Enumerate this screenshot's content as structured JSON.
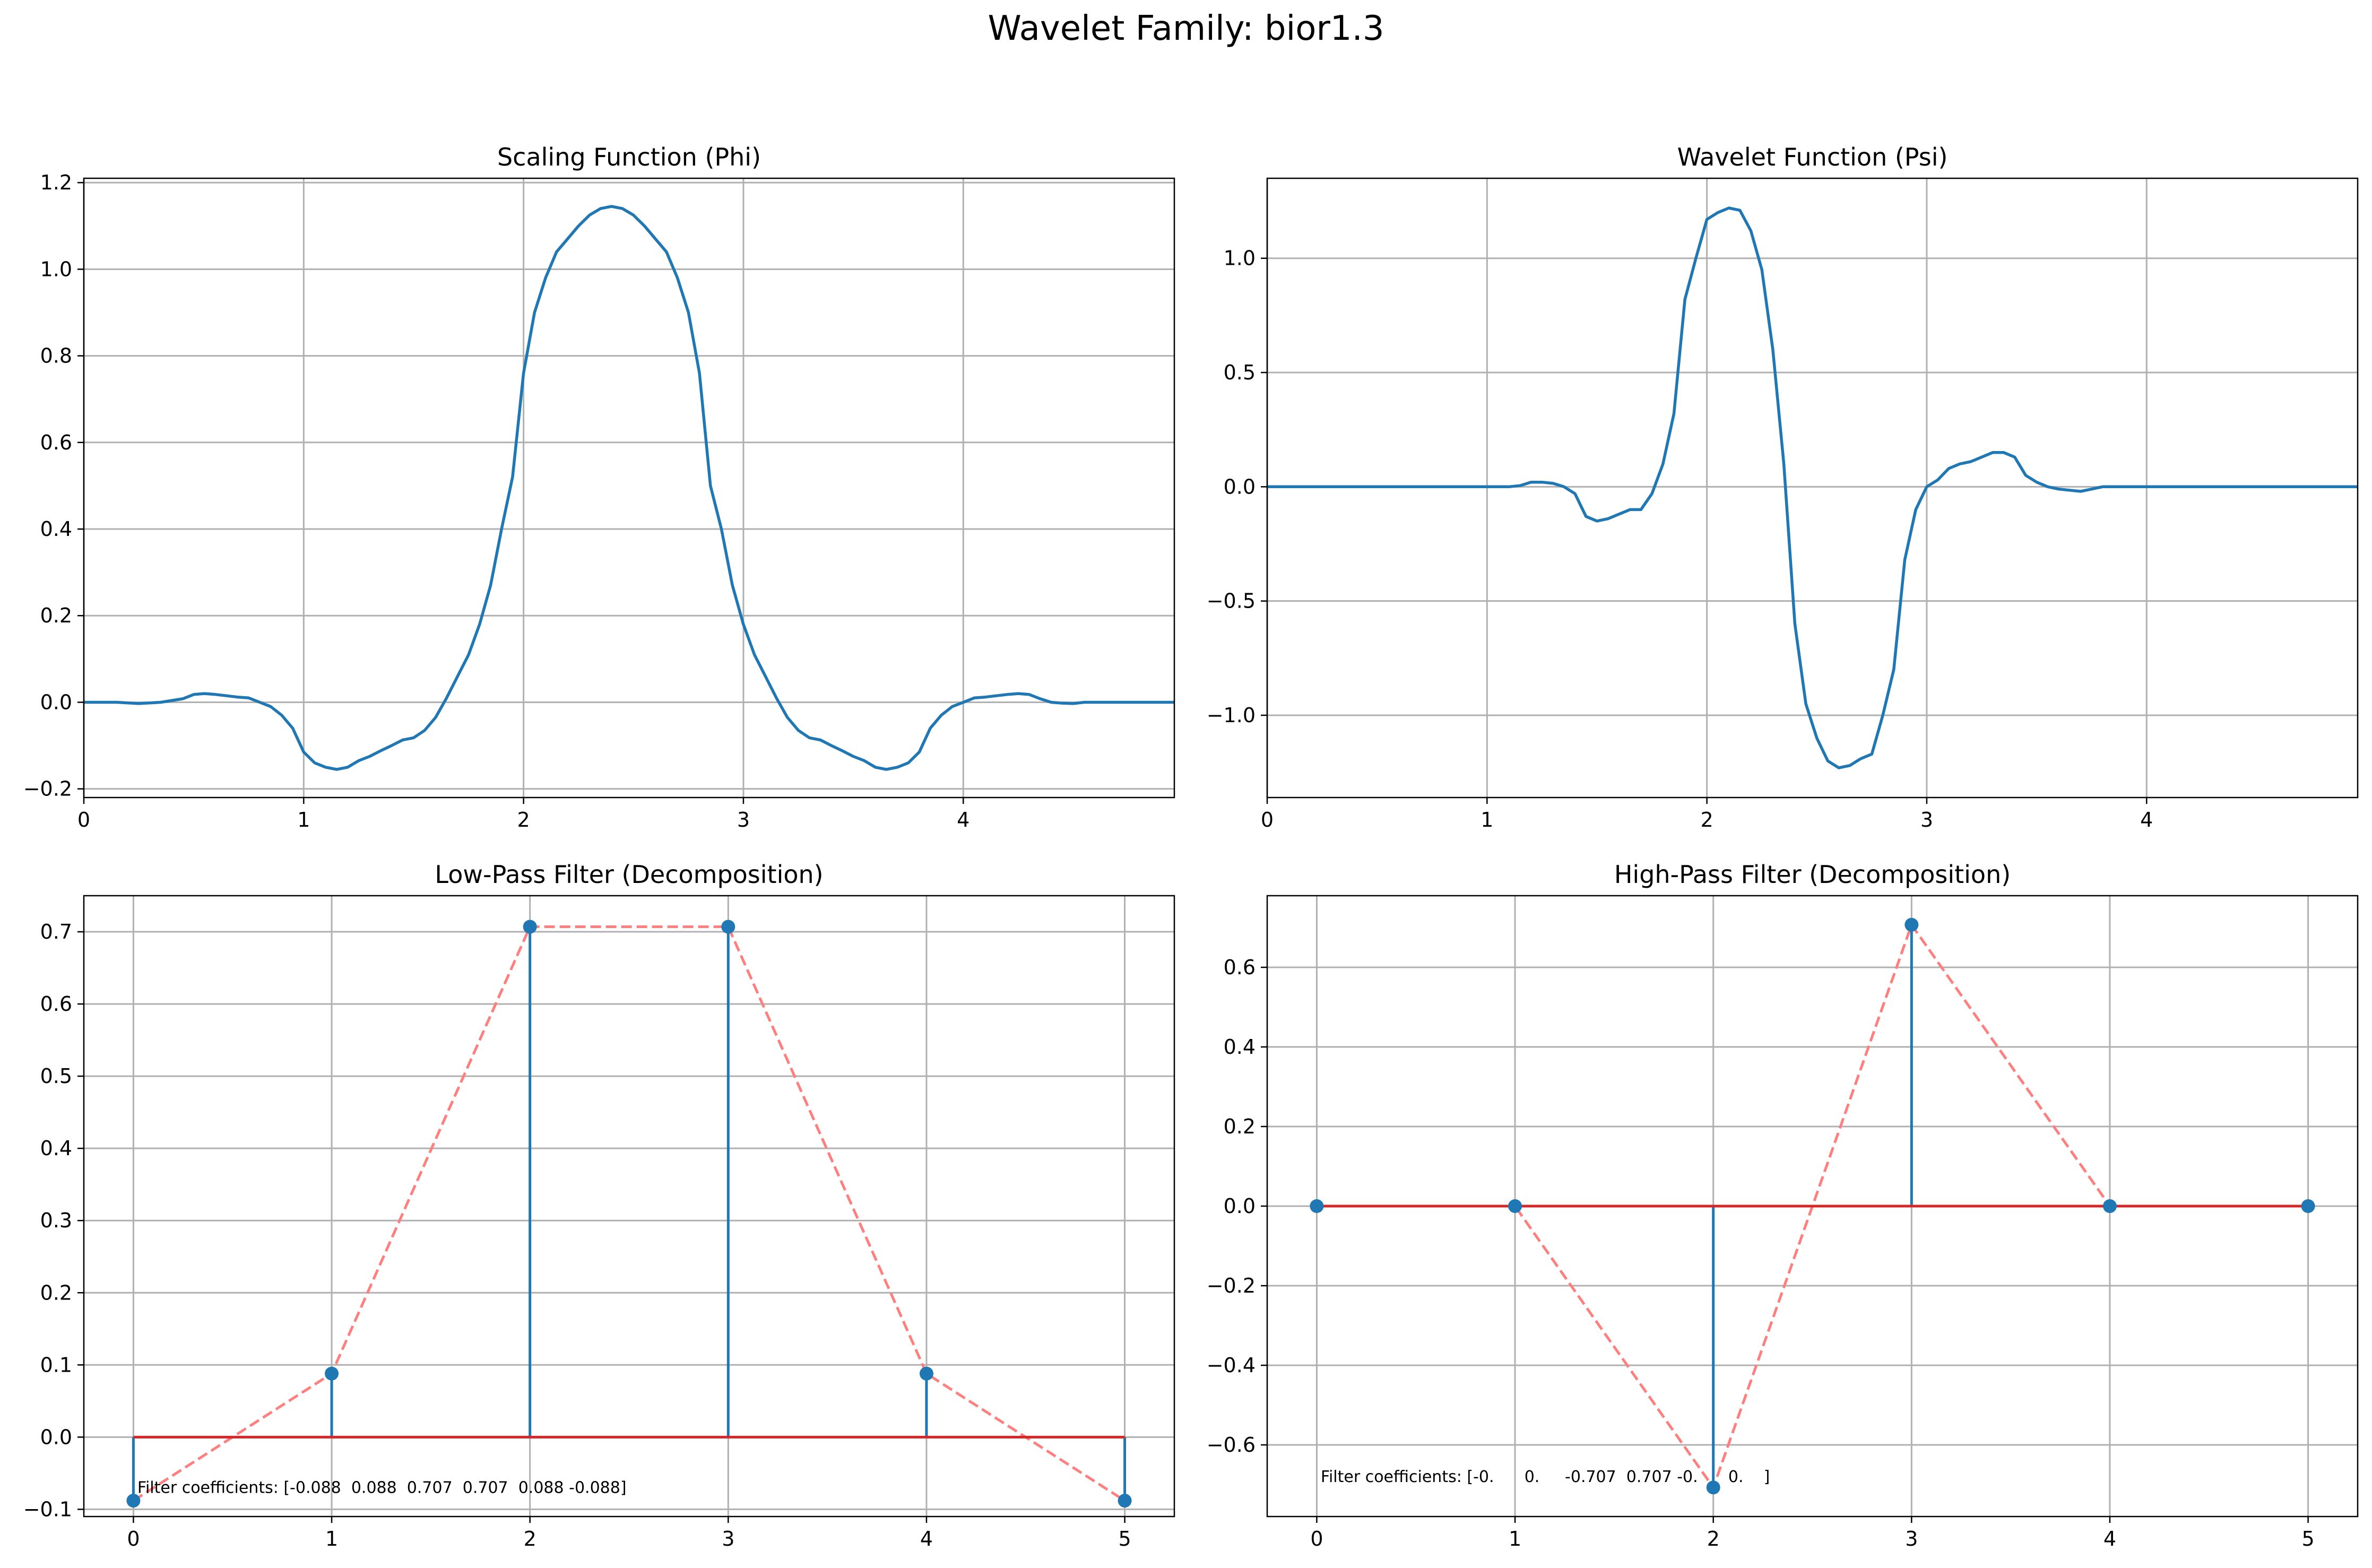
{
  "suptitle": "Wavelet Family: bior1.3",
  "colors": {
    "series": "#1f77b4",
    "baseline": "#d62728",
    "dashed": "#ff7f7f",
    "grid": "#b0b0b0"
  },
  "chart_data": [
    {
      "id": "phi",
      "type": "line",
      "title": "Scaling Function (Phi)",
      "xlabel": "",
      "ylabel": "",
      "xlim": [
        0,
        4.96
      ],
      "ylim": [
        -0.22,
        1.21
      ],
      "xticks": [
        0,
        1,
        2,
        3,
        4
      ],
      "xtick_labels": [
        "0",
        "1",
        "2",
        "3",
        "4"
      ],
      "yticks": [
        -0.2,
        0.0,
        0.2,
        0.4,
        0.6,
        0.8,
        1.0,
        1.2
      ],
      "ytick_labels": [
        "−0.2",
        "0.0",
        "0.2",
        "0.4",
        "0.6",
        "0.8",
        "1.0",
        "1.2"
      ],
      "grid": true,
      "x": [
        0,
        0.15,
        0.25,
        0.35,
        0.45,
        0.5,
        0.55,
        0.6,
        0.7,
        0.75,
        0.8,
        0.85,
        0.9,
        0.95,
        1.0,
        1.05,
        1.1,
        1.15,
        1.2,
        1.25,
        1.3,
        1.35,
        1.4,
        1.45,
        1.5,
        1.55,
        1.6,
        1.65,
        1.7,
        1.75,
        1.8,
        1.85,
        1.9,
        1.95,
        2.0,
        2.05,
        2.1,
        2.15,
        2.2,
        2.25,
        2.3,
        2.35,
        2.4,
        2.45,
        2.5,
        2.55,
        2.6,
        2.65,
        2.7,
        2.75,
        2.8,
        2.85,
        2.9,
        2.95,
        3.0,
        3.05,
        3.1,
        3.15,
        3.2,
        3.25,
        3.3,
        3.35,
        3.4,
        3.45,
        3.5,
        3.55,
        3.6,
        3.65,
        3.7,
        3.75,
        3.8,
        3.85,
        3.9,
        3.95,
        4.0,
        4.05,
        4.1,
        4.15,
        4.2,
        4.25,
        4.3,
        4.35,
        4.4,
        4.45,
        4.5,
        4.55,
        4.6,
        4.65,
        4.75,
        4.85,
        4.96
      ],
      "y": [
        0,
        0,
        -0.003,
        0,
        0.008,
        0.018,
        0.02,
        0.018,
        0.012,
        0.01,
        0,
        -0.01,
        -0.03,
        -0.06,
        -0.115,
        -0.14,
        -0.15,
        -0.155,
        -0.15,
        -0.135,
        -0.125,
        -0.112,
        -0.1,
        -0.087,
        -0.082,
        -0.065,
        -0.035,
        0.01,
        0.06,
        0.11,
        0.18,
        0.27,
        0.4,
        0.52,
        0.76,
        0.9,
        0.98,
        1.04,
        1.07,
        1.1,
        1.125,
        1.14,
        1.145,
        1.14,
        1.125,
        1.1,
        1.07,
        1.04,
        0.98,
        0.9,
        0.76,
        0.5,
        0.4,
        0.27,
        0.18,
        0.11,
        0.06,
        0.01,
        -0.035,
        -0.065,
        -0.082,
        -0.087,
        -0.1,
        -0.112,
        -0.125,
        -0.135,
        -0.15,
        -0.155,
        -0.15,
        -0.14,
        -0.115,
        -0.06,
        -0.03,
        -0.01,
        0,
        0.01,
        0.012,
        0.015,
        0.018,
        0.02,
        0.018,
        0.008,
        0,
        -0.002,
        -0.003,
        0,
        0,
        0,
        0,
        0,
        0
      ]
    },
    {
      "id": "psi",
      "type": "line",
      "title": "Wavelet Function (Psi)",
      "xlabel": "",
      "ylabel": "",
      "xlim": [
        0,
        4.96
      ],
      "ylim": [
        -1.36,
        1.35
      ],
      "xticks": [
        0,
        1,
        2,
        3,
        4
      ],
      "xtick_labels": [
        "0",
        "1",
        "2",
        "3",
        "4"
      ],
      "yticks": [
        -1.0,
        -0.5,
        0.0,
        0.5,
        1.0
      ],
      "ytick_labels": [
        "−1.0",
        "−0.5",
        "0.0",
        "0.5",
        "1.0"
      ],
      "grid": true,
      "x": [
        0,
        1.0,
        1.1,
        1.15,
        1.2,
        1.25,
        1.3,
        1.35,
        1.4,
        1.45,
        1.5,
        1.55,
        1.6,
        1.65,
        1.7,
        1.75,
        1.8,
        1.85,
        1.9,
        1.95,
        2.0,
        2.05,
        2.1,
        2.15,
        2.2,
        2.25,
        2.3,
        2.35,
        2.4,
        2.45,
        2.5,
        2.55,
        2.6,
        2.65,
        2.7,
        2.75,
        2.8,
        2.85,
        2.9,
        2.95,
        3.0,
        3.05,
        3.1,
        3.15,
        3.2,
        3.25,
        3.3,
        3.35,
        3.4,
        3.45,
        3.5,
        3.55,
        3.6,
        3.7,
        3.8,
        4.0,
        4.96
      ],
      "y": [
        0,
        0,
        0,
        0.005,
        0.02,
        0.02,
        0.015,
        0,
        -0.03,
        -0.13,
        -0.15,
        -0.14,
        -0.12,
        -0.1,
        -0.1,
        -0.03,
        0.1,
        0.32,
        0.82,
        1.0,
        1.17,
        1.2,
        1.22,
        1.21,
        1.12,
        0.95,
        0.6,
        0.1,
        -0.6,
        -0.95,
        -1.1,
        -1.2,
        -1.23,
        -1.22,
        -1.19,
        -1.17,
        -1.0,
        -0.8,
        -0.32,
        -0.1,
        0,
        0.03,
        0.08,
        0.1,
        0.11,
        0.13,
        0.15,
        0.15,
        0.13,
        0.05,
        0.02,
        0,
        -0.01,
        -0.02,
        0,
        0,
        0
      ]
    },
    {
      "id": "lowpass",
      "type": "stem",
      "title": "Low-Pass Filter (Decomposition)",
      "xlabel": "",
      "ylabel": "",
      "xlim": [
        -0.25,
        5.25
      ],
      "ylim": [
        -0.11,
        0.75
      ],
      "xticks": [
        0,
        1,
        2,
        3,
        4,
        5
      ],
      "xtick_labels": [
        "0",
        "1",
        "2",
        "3",
        "4",
        "5"
      ],
      "yticks": [
        -0.1,
        0.0,
        0.1,
        0.2,
        0.3,
        0.4,
        0.5,
        0.6,
        0.7
      ],
      "ytick_labels": [
        "−0.1",
        "0.0",
        "0.1",
        "0.2",
        "0.3",
        "0.4",
        "0.5",
        "0.6",
        "0.7"
      ],
      "grid": true,
      "x": [
        0,
        1,
        2,
        3,
        4,
        5
      ],
      "y": [
        -0.088,
        0.088,
        0.707,
        0.707,
        0.088,
        -0.088
      ],
      "annotation": "Filter coefficients: [-0.088  0.088  0.707  0.707  0.088 -0.088]",
      "annotation_pos": [
        0.02,
        -0.07
      ]
    },
    {
      "id": "highpass",
      "type": "stem",
      "title": "High-Pass Filter (Decomposition)",
      "xlabel": "",
      "ylabel": "",
      "xlim": [
        -0.25,
        5.25
      ],
      "ylim": [
        -0.78,
        0.78
      ],
      "xticks": [
        0,
        1,
        2,
        3,
        4,
        5
      ],
      "xtick_labels": [
        "0",
        "1",
        "2",
        "3",
        "4",
        "5"
      ],
      "yticks": [
        -0.6,
        -0.4,
        -0.2,
        0.0,
        0.2,
        0.4,
        0.6
      ],
      "ytick_labels": [
        "−0.6",
        "−0.4",
        "−0.2",
        "0.0",
        "0.2",
        "0.4",
        "0.6"
      ],
      "grid": true,
      "x": [
        0,
        1,
        2,
        3,
        4,
        5
      ],
      "y": [
        0,
        0,
        -0.707,
        0.707,
        0,
        0
      ],
      "annotation": "Filter coefficients: [-0.      0.     -0.707  0.707 -0.      0.    ]",
      "annotation_pos": [
        0.02,
        -0.68
      ]
    }
  ]
}
